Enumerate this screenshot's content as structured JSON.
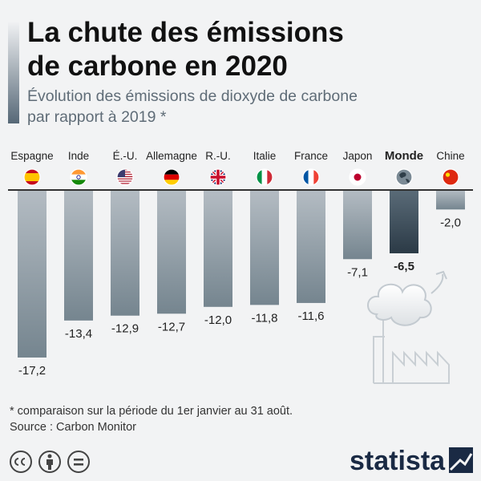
{
  "header": {
    "title_line1": "La chute des émissions",
    "title_line2": "de carbone en 2020",
    "subtitle_line1": "Évolution des émissions de dioxyde de carbone",
    "subtitle_line2": "par rapport à 2019 *"
  },
  "chart_data": {
    "type": "bar",
    "title": "La chute des émissions de carbone en 2020",
    "subtitle": "Évolution des émissions de dioxyde de carbone par rapport à 2019 *",
    "categories": [
      "Espagne",
      "Inde",
      "É.-U.",
      "Allemagne",
      "R.-U.",
      "Italie",
      "France",
      "Japon",
      "Monde",
      "Chine"
    ],
    "values": [
      -17.2,
      -13.4,
      -12.9,
      -12.7,
      -12.0,
      -11.8,
      -11.6,
      -7.1,
      -6.5,
      -2.0
    ],
    "value_labels": [
      "-17,2",
      "-13,4",
      "-12,9",
      "-12,7",
      "-12,0",
      "-11,8",
      "-11,6",
      "-7,1",
      "-6,5",
      "-2,0"
    ],
    "highlight": "Monde",
    "flags": [
      "spain-flag",
      "india-flag",
      "usa-flag",
      "germany-flag",
      "uk-flag",
      "italy-flag",
      "france-flag",
      "japan-flag",
      "globe-icon",
      "china-flag"
    ],
    "ylim": [
      -18,
      0
    ],
    "grid": false,
    "colors": {
      "bar_top": "#b4bcc3",
      "bar_bottom": "#75858f",
      "highlight_top": "#5a6b78",
      "highlight_bottom": "#2b3a46",
      "baseline": "#333333"
    }
  },
  "footer": {
    "footnote": "* comparaison sur la période du 1er janvier au 31 août.",
    "source": "Source : Carbon Monitor",
    "brand": "statista"
  }
}
